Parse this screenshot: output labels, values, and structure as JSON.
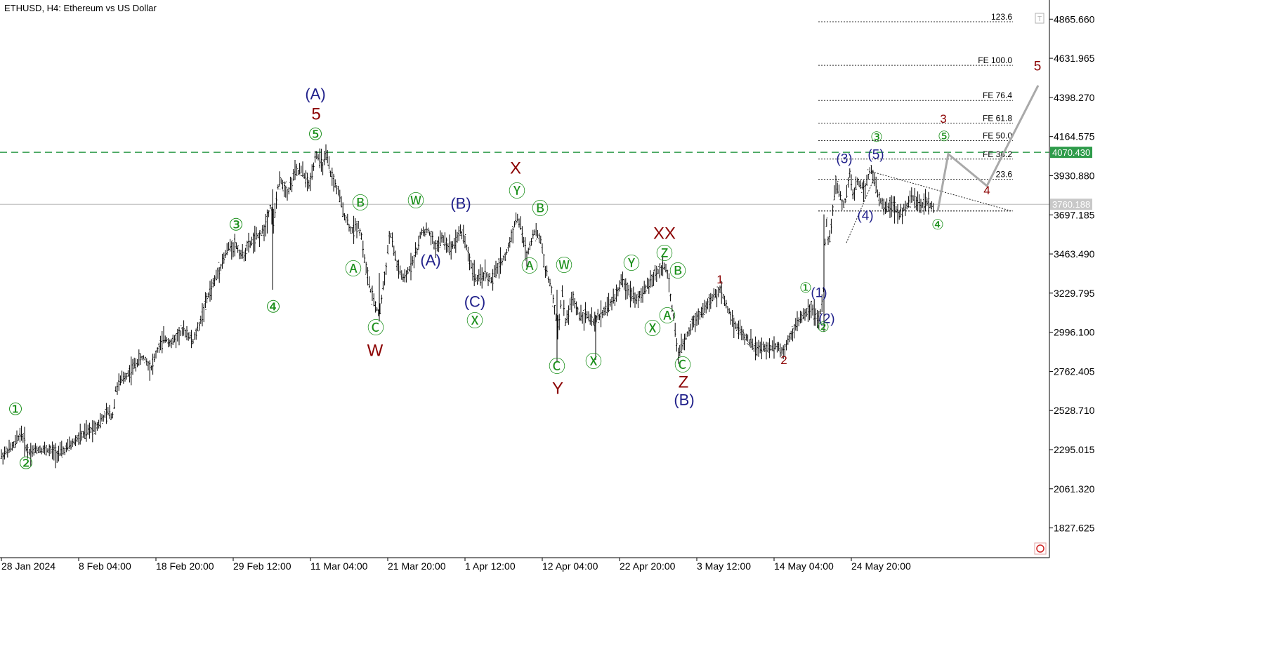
{
  "chart_data": {
    "type": "line",
    "title": "ETHUSD, H4:  Ethereum vs US Dollar",
    "ylim": [
      1650,
      4980
    ],
    "y_ticks": [
      "4865.660",
      "4631.965",
      "4398.270",
      "4164.575",
      "3930.880",
      "3697.185",
      "3463.490",
      "3229.795",
      "2996.100",
      "2762.405",
      "2528.710",
      "2295.015",
      "2061.320",
      "1827.625"
    ],
    "x_ticks": [
      "28 Jan 2024",
      "8 Feb 04:00",
      "18 Feb 20:00",
      "29 Feb 12:00",
      "11 Mar 04:00",
      "21 Mar 20:00",
      "1 Apr 12:00",
      "12 Apr 04:00",
      "22 Apr 20:00",
      "3 May 12:00",
      "14 May 04:00",
      "24 May 20:00"
    ],
    "x_range": [
      0,
      1760
    ],
    "price_series": {
      "name": "",
      "x": [
        0,
        20,
        30,
        40,
        55,
        70,
        85,
        100,
        110,
        125,
        140,
        155,
        160,
        165,
        175,
        185,
        195,
        205,
        215,
        225,
        235,
        245,
        255,
        265,
        275,
        285,
        295,
        305,
        315,
        325,
        335,
        345,
        355,
        365,
        375,
        385,
        390,
        395,
        400,
        410,
        420,
        430,
        440,
        450,
        455,
        460,
        465,
        470,
        480,
        490,
        500,
        510,
        515,
        520,
        530,
        540,
        545,
        550,
        555,
        560,
        565,
        575,
        585,
        595,
        600,
        610,
        620,
        630,
        640,
        645,
        655,
        660,
        670,
        680,
        690,
        700,
        710,
        720,
        730,
        735,
        740,
        745,
        750,
        760,
        770,
        775,
        785,
        795,
        800,
        805,
        815,
        825,
        835,
        845,
        855,
        865,
        875,
        885,
        895,
        905,
        915,
        925,
        935,
        945,
        950,
        960,
        965,
        975,
        985,
        995,
        1005,
        1015,
        1025,
        1035,
        1045,
        1055,
        1065,
        1075,
        1085,
        1095,
        1105,
        1115,
        1125,
        1135,
        1145,
        1155,
        1165,
        1172,
        1176,
        1180,
        1190,
        1200,
        1205,
        1210,
        1215,
        1220,
        1230,
        1240,
        1245,
        1250,
        1260,
        1270,
        1280,
        1290,
        1300,
        1310,
        1320,
        1330
      ],
      "values": [
        2250,
        2320,
        2400,
        2280,
        2300,
        2290,
        2270,
        2320,
        2360,
        2400,
        2450,
        2520,
        2490,
        2660,
        2720,
        2760,
        2820,
        2850,
        2780,
        2900,
        2960,
        2930,
        2990,
        3000,
        2940,
        3060,
        3200,
        3300,
        3400,
        3500,
        3520,
        3450,
        3520,
        3560,
        3600,
        3750,
        3650,
        3850,
        3900,
        3830,
        3950,
        3960,
        3870,
        4070,
        4020,
        4000,
        4050,
        3950,
        3850,
        3700,
        3600,
        3640,
        3560,
        3400,
        3200,
        3100,
        3250,
        3400,
        3600,
        3500,
        3400,
        3300,
        3400,
        3500,
        3600,
        3600,
        3500,
        3560,
        3500,
        3520,
        3600,
        3580,
        3400,
        3300,
        3350,
        3300,
        3400,
        3450,
        3600,
        3680,
        3650,
        3550,
        3450,
        3600,
        3550,
        3400,
        3250,
        3000,
        3250,
        3050,
        3200,
        3100,
        3100,
        3050,
        3100,
        3150,
        3200,
        3300,
        3250,
        3200,
        3220,
        3300,
        3350,
        3400,
        3350,
        3050,
        2850,
        2950,
        3050,
        3100,
        3150,
        3200,
        3250,
        3150,
        3050,
        3000,
        2950,
        2900,
        2900,
        2900,
        2920,
        2880,
        2980,
        3050,
        3100,
        3150,
        3050,
        3200,
        3700,
        3500,
        3900,
        3750,
        3800,
        3950,
        3800,
        3900,
        3850,
        3980,
        3900,
        3800,
        3750,
        3750,
        3700,
        3750,
        3800,
        3750,
        3780,
        3720
      ]
    },
    "projection": {
      "x": [
        1335,
        1350,
        1405,
        1478
      ],
      "values": [
        3720,
        4060,
        3870,
        4470
      ]
    },
    "horizontal_lines": [
      {
        "label": "4070.430",
        "value": 4070.43,
        "color": "#2e9b4a",
        "style": "dashed"
      },
      {
        "label": "3760.188",
        "value": 3760.188,
        "color": "#b8b8b8",
        "style": "solid"
      }
    ],
    "fib_levels": [
      {
        "label": "123.6",
        "value": 4850
      },
      {
        "label": "FE 100.0",
        "value": 4590
      },
      {
        "label": "FE 76.4",
        "value": 4380
      },
      {
        "label": "FE 61.8",
        "value": 4245
      },
      {
        "label": "FE 50.0",
        "value": 4140
      },
      {
        "label": "FE 38.2",
        "value": 4030
      },
      {
        "label": "23.6",
        "value": 3910
      },
      {
        "label": "",
        "value": 3720
      }
    ],
    "triangle_lines": [
      {
        "x": [
          1245,
          1440
        ],
        "values": [
          3950,
          3720
        ]
      },
      {
        "x": [
          1165,
          1440
        ],
        "values": [
          3720,
          3720
        ]
      },
      {
        "x": [
          1205,
          1245
        ],
        "values": [
          3530,
          3920
        ]
      }
    ],
    "wave_labels": [
      {
        "text": "①",
        "x": 22,
        "y": 583,
        "color": "#1a8f1a",
        "size": 24
      },
      {
        "text": "②",
        "x": 37,
        "y": 660,
        "color": "#1a8f1a",
        "size": 24
      },
      {
        "text": "③",
        "x": 336,
        "y": 320,
        "color": "#1a8f1a",
        "size": 24
      },
      {
        "text": "④",
        "x": 389,
        "y": 437,
        "color": "#1a8f1a",
        "size": 24
      },
      {
        "text": "(A)",
        "x": 449,
        "y": 134,
        "color": "#1f1f8a",
        "size": 22
      },
      {
        "text": "5",
        "x": 450,
        "y": 162,
        "color": "#8b0000",
        "size": 24
      },
      {
        "text": "⑤",
        "x": 449,
        "y": 191,
        "color": "#1a8f1a",
        "size": 24
      },
      {
        "text": "Ⓑ",
        "x": 513,
        "y": 289,
        "color": "#1a8f1a",
        "size": 24
      },
      {
        "text": "Ⓐ",
        "x": 503,
        "y": 383,
        "color": "#1a8f1a",
        "size": 24
      },
      {
        "text": "Ⓒ",
        "x": 535,
        "y": 467,
        "color": "#1a8f1a",
        "size": 24
      },
      {
        "text": "W",
        "x": 534,
        "y": 499,
        "color": "#8b0000",
        "size": 24
      },
      {
        "text": "Ⓦ",
        "x": 592,
        "y": 286,
        "color": "#1a8f1a",
        "size": 24
      },
      {
        "text": "(A)",
        "x": 613,
        "y": 371,
        "color": "#1f1f8a",
        "size": 22
      },
      {
        "text": "(B)",
        "x": 656,
        "y": 290,
        "color": "#1f1f8a",
        "size": 22
      },
      {
        "text": "(C)",
        "x": 676,
        "y": 430,
        "color": "#1f1f8a",
        "size": 22
      },
      {
        "text": "Ⓧ",
        "x": 676,
        "y": 457,
        "color": "#1a8f1a",
        "size": 24
      },
      {
        "text": "X",
        "x": 734,
        "y": 239,
        "color": "#8b0000",
        "size": 24
      },
      {
        "text": "Ⓨ",
        "x": 736,
        "y": 272,
        "color": "#1a8f1a",
        "size": 24
      },
      {
        "text": "Ⓑ",
        "x": 769,
        "y": 297,
        "color": "#1a8f1a",
        "size": 24
      },
      {
        "text": "Ⓐ",
        "x": 754,
        "y": 379,
        "color": "#1a8f1a",
        "size": 24
      },
      {
        "text": "Ⓦ",
        "x": 803,
        "y": 378,
        "color": "#1a8f1a",
        "size": 24
      },
      {
        "text": "Ⓒ",
        "x": 793,
        "y": 522,
        "color": "#1a8f1a",
        "size": 24
      },
      {
        "text": "Y",
        "x": 794,
        "y": 553,
        "color": "#8b0000",
        "size": 24
      },
      {
        "text": "Ⓧ",
        "x": 845,
        "y": 515,
        "color": "#1a8f1a",
        "size": 24
      },
      {
        "text": "Ⓨ",
        "x": 899,
        "y": 375,
        "color": "#1a8f1a",
        "size": 24
      },
      {
        "text": "XX",
        "x": 946,
        "y": 332,
        "color": "#8b0000",
        "size": 24
      },
      {
        "text": "Ⓩ",
        "x": 946,
        "y": 361,
        "color": "#1a8f1a",
        "size": 24
      },
      {
        "text": "Ⓑ",
        "x": 965,
        "y": 386,
        "color": "#1a8f1a",
        "size": 24
      },
      {
        "text": "Ⓐ",
        "x": 950,
        "y": 450,
        "color": "#1a8f1a",
        "size": 24
      },
      {
        "text": "Ⓧ",
        "x": 929,
        "y": 468,
        "color": "#1a8f1a",
        "size": 24
      },
      {
        "text": "Ⓒ",
        "x": 972,
        "y": 520,
        "color": "#1a8f1a",
        "size": 24
      },
      {
        "text": "Z",
        "x": 973,
        "y": 544,
        "color": "#8b0000",
        "size": 24
      },
      {
        "text": "(B)",
        "x": 974,
        "y": 570,
        "color": "#1f1f8a",
        "size": 22
      },
      {
        "text": "1",
        "x": 1025,
        "y": 398,
        "color": "#8b0000",
        "size": 17
      },
      {
        "text": "2",
        "x": 1116,
        "y": 513,
        "color": "#8b0000",
        "size": 17
      },
      {
        "text": "①",
        "x": 1147,
        "y": 410,
        "color": "#1a8f1a",
        "size": 20
      },
      {
        "text": "(1)",
        "x": 1166,
        "y": 417,
        "color": "#1f1f8a",
        "size": 19
      },
      {
        "text": "(2)",
        "x": 1177,
        "y": 454,
        "color": "#1f1f8a",
        "size": 19
      },
      {
        "text": "②",
        "x": 1172,
        "y": 466,
        "color": "#1a8f1a",
        "size": 20
      },
      {
        "text": "(3)",
        "x": 1202,
        "y": 226,
        "color": "#1f1f8a",
        "size": 19
      },
      {
        "text": "③",
        "x": 1248,
        "y": 195,
        "color": "#1a8f1a",
        "size": 20
      },
      {
        "text": "(5)",
        "x": 1247,
        "y": 220,
        "color": "#1f1f8a",
        "size": 19
      },
      {
        "text": "(4)",
        "x": 1232,
        "y": 307,
        "color": "#1f1f8a",
        "size": 19
      },
      {
        "text": "3",
        "x": 1343,
        "y": 169,
        "color": "#8b0000",
        "size": 17
      },
      {
        "text": "⑤",
        "x": 1344,
        "y": 194,
        "color": "#1a8f1a",
        "size": 20
      },
      {
        "text": "4",
        "x": 1405,
        "y": 271,
        "color": "#8b0000",
        "size": 17
      },
      {
        "text": "④",
        "x": 1335,
        "y": 320,
        "color": "#1a8f1a",
        "size": 20
      },
      {
        "text": "5",
        "x": 1477,
        "y": 94,
        "color": "#8b0000",
        "size": 19
      }
    ],
    "colors": {
      "candle": "#000000",
      "axis": "#000000",
      "projection": "#a9a9a9",
      "level_green": "#2e9b4a",
      "price_badge_bg": "#c8c8c8",
      "green_badge_bg": "#2e9b4a"
    }
  }
}
